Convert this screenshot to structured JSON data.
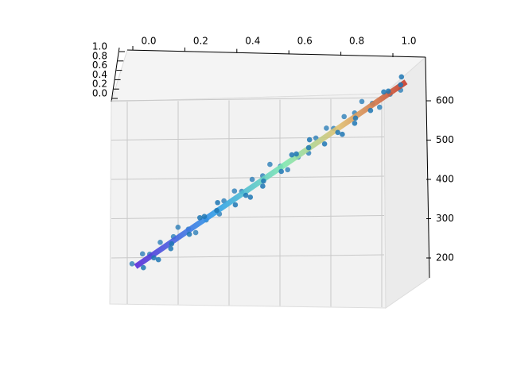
{
  "chart_data": {
    "type": "scatter3d",
    "color": "#1f77b4",
    "colormap": "jet",
    "grid": true,
    "xlim": [
      0,
      1
    ],
    "xticks": [
      {
        "value": 0,
        "label": "0.0"
      },
      {
        "value": 0.2,
        "label": "0.2"
      },
      {
        "value": 0.4,
        "label": "0.4"
      },
      {
        "value": 0.6,
        "label": "0.6"
      },
      {
        "value": 0.8,
        "label": "0.8"
      },
      {
        "value": 1,
        "label": "1.0"
      }
    ],
    "ylim": [
      0,
      1
    ],
    "yticks": [
      {
        "value": 0,
        "label": "0.0"
      },
      {
        "value": 0.2,
        "label": "0.2"
      },
      {
        "value": 0.4,
        "label": "0.4"
      },
      {
        "value": 0.6,
        "label": "0.6"
      },
      {
        "value": 0.8,
        "label": "0.8"
      },
      {
        "value": 1,
        "label": "1.0"
      }
    ],
    "zlim": [
      150,
      680
    ],
    "zticks": [
      200,
      300,
      400,
      500,
      600
    ],
    "x": [
      0.0,
      0.02,
      0.03,
      0.05,
      0.07,
      0.08,
      0.1,
      0.12,
      0.14,
      0.15,
      0.17,
      0.19,
      0.2,
      0.22,
      0.24,
      0.25,
      0.27,
      0.29,
      0.31,
      0.32,
      0.34,
      0.36,
      0.37,
      0.39,
      0.41,
      0.42,
      0.44,
      0.46,
      0.47,
      0.49,
      0.51,
      0.53,
      0.54,
      0.56,
      0.58,
      0.59,
      0.61,
      0.63,
      0.64,
      0.66,
      0.68,
      0.69,
      0.71,
      0.73,
      0.75,
      0.76,
      0.78,
      0.8,
      0.81,
      0.83,
      0.85,
      0.86,
      0.88,
      0.9,
      0.92,
      0.93,
      0.95,
      0.97,
      0.98,
      1.0
    ],
    "y": [
      0.2,
      0.7,
      0.4,
      0.9,
      0.1,
      0.6,
      0.3,
      0.8,
      0.5,
      0.05,
      0.2,
      0.7,
      0.4,
      0.9,
      0.1,
      0.6,
      0.3,
      0.8,
      0.5,
      0.05,
      0.2,
      0.7,
      0.4,
      0.9,
      0.1,
      0.6,
      0.3,
      0.8,
      0.5,
      0.05,
      0.2,
      0.7,
      0.4,
      0.9,
      0.1,
      0.6,
      0.3,
      0.8,
      0.5,
      0.05,
      0.2,
      0.7,
      0.4,
      0.9,
      0.1,
      0.6,
      0.3,
      0.8,
      0.5,
      0.05,
      0.2,
      0.7,
      0.4,
      0.9,
      0.1,
      0.6,
      0.3,
      0.8,
      0.5,
      0.05
    ],
    "z": [
      182,
      164,
      204,
      186,
      208,
      186,
      235,
      223,
      246,
      223,
      275,
      249,
      267,
      288,
      263,
      296,
      292,
      328,
      304,
      320,
      342,
      324,
      364,
      345,
      368,
      345,
      395,
      383,
      401,
      382,
      435,
      409,
      427,
      448,
      423,
      455,
      452,
      488,
      459,
      480,
      502,
      479,
      524,
      505,
      528,
      505,
      555,
      543,
      561,
      542,
      595,
      564,
      587,
      608,
      582,
      615,
      612,
      648,
      619,
      640
    ],
    "surface": {
      "x": [
        0,
        1
      ],
      "z": [
        170,
        640
      ]
    }
  }
}
